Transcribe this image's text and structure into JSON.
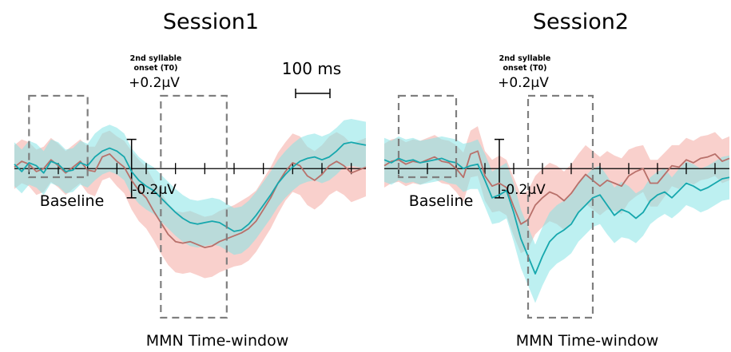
{
  "figure": {
    "colors": {
      "series_a_line": "#b8706a",
      "series_a_band": "#f4a9a3",
      "series_b_line": "#16a7ad",
      "series_b_band": "#86e3e6",
      "box": "#7f7f7f",
      "axis": "#000000"
    },
    "scale_bar_label": "100 ms"
  },
  "chart_data": [
    {
      "type": "line",
      "title": "Session1",
      "onset_label": [
        "2nd syllable",
        "onset (T0)"
      ],
      "y_tick_top": "+0.2μV",
      "y_tick_bottom": "-0.2μV",
      "baseline_label": "Baseline",
      "window_label": "MMN Time-window",
      "x_domain_ms": [
        -400,
        800
      ],
      "y_domain_uv": [
        -0.78,
        0.4
      ],
      "baseline_window_ms": [
        -350,
        -150
      ],
      "mmn_window_ms": [
        100,
        325
      ],
      "series": [
        {
          "x": [
            -400,
            -375,
            -350,
            -325,
            -300,
            -275,
            -250,
            -225,
            -200,
            -175,
            -150,
            -125,
            -100,
            -75,
            -50,
            -25,
            0,
            25,
            50,
            75,
            100,
            125,
            150,
            175,
            200,
            225,
            250,
            275,
            300,
            325,
            350,
            375,
            400,
            425,
            450,
            475,
            500,
            525,
            550,
            575,
            600,
            625,
            650,
            675,
            700,
            725,
            750,
            775,
            800
          ],
          "mean": [
            0.01,
            0.05,
            0.03,
            -0.02,
            0.0,
            0.06,
            0.02,
            -0.03,
            0.01,
            0.05,
            -0.01,
            -0.02,
            0.08,
            0.1,
            0.05,
            0.01,
            -0.08,
            -0.15,
            -0.2,
            -0.29,
            -0.37,
            -0.45,
            -0.5,
            -0.51,
            -0.5,
            -0.52,
            -0.54,
            -0.53,
            -0.5,
            -0.48,
            -0.46,
            -0.44,
            -0.41,
            -0.36,
            -0.28,
            -0.2,
            -0.1,
            -0.02,
            0.04,
            0.02,
            -0.05,
            -0.08,
            -0.04,
            0.02,
            0.05,
            0.02,
            -0.03,
            -0.01,
            0.01
          ],
          "lower": [
            -0.14,
            -0.1,
            -0.12,
            -0.18,
            -0.16,
            -0.09,
            -0.13,
            -0.18,
            -0.14,
            -0.1,
            -0.17,
            -0.19,
            -0.08,
            -0.06,
            -0.12,
            -0.17,
            -0.28,
            -0.36,
            -0.41,
            -0.49,
            -0.58,
            -0.66,
            -0.71,
            -0.72,
            -0.71,
            -0.73,
            -0.75,
            -0.74,
            -0.71,
            -0.69,
            -0.67,
            -0.66,
            -0.63,
            -0.57,
            -0.49,
            -0.41,
            -0.31,
            -0.22,
            -0.16,
            -0.18,
            -0.25,
            -0.28,
            -0.24,
            -0.18,
            -0.15,
            -0.18,
            -0.23,
            -0.21,
            -0.19
          ],
          "upper": [
            0.16,
            0.2,
            0.18,
            0.13,
            0.15,
            0.21,
            0.17,
            0.12,
            0.16,
            0.2,
            0.15,
            0.15,
            0.24,
            0.26,
            0.22,
            0.19,
            0.12,
            0.06,
            0.01,
            -0.08,
            -0.16,
            -0.24,
            -0.29,
            -0.3,
            -0.29,
            -0.31,
            -0.33,
            -0.32,
            -0.29,
            -0.27,
            -0.25,
            -0.22,
            -0.19,
            -0.15,
            -0.07,
            0.01,
            0.11,
            0.18,
            0.24,
            0.22,
            0.15,
            0.12,
            0.16,
            0.22,
            0.25,
            0.22,
            0.17,
            0.19,
            0.21
          ]
        },
        {
          "x": [
            -400,
            -375,
            -350,
            -325,
            -300,
            -275,
            -250,
            -225,
            -200,
            -175,
            -150,
            -125,
            -100,
            -75,
            -50,
            -25,
            0,
            25,
            50,
            75,
            100,
            125,
            150,
            175,
            200,
            225,
            250,
            275,
            300,
            325,
            350,
            375,
            400,
            425,
            450,
            475,
            500,
            525,
            550,
            575,
            600,
            625,
            650,
            675,
            700,
            725,
            750,
            775,
            800
          ],
          "mean": [
            0.03,
            -0.02,
            0.04,
            0.02,
            -0.03,
            0.05,
            0.03,
            -0.02,
            -0.01,
            0.04,
            0.02,
            0.08,
            0.12,
            0.14,
            0.12,
            0.08,
            -0.02,
            -0.08,
            -0.12,
            -0.15,
            -0.2,
            -0.25,
            -0.3,
            -0.34,
            -0.37,
            -0.38,
            -0.37,
            -0.36,
            -0.37,
            -0.4,
            -0.43,
            -0.42,
            -0.38,
            -0.32,
            -0.25,
            -0.18,
            -0.1,
            -0.04,
            0.01,
            0.05,
            0.07,
            0.08,
            0.06,
            0.08,
            0.12,
            0.17,
            0.18,
            0.17,
            0.16
          ],
          "lower": [
            -0.12,
            -0.17,
            -0.11,
            -0.13,
            -0.18,
            -0.1,
            -0.12,
            -0.17,
            -0.16,
            -0.11,
            -0.13,
            -0.08,
            -0.04,
            -0.02,
            -0.04,
            -0.08,
            -0.18,
            -0.24,
            -0.28,
            -0.31,
            -0.36,
            -0.41,
            -0.46,
            -0.5,
            -0.53,
            -0.54,
            -0.53,
            -0.52,
            -0.53,
            -0.56,
            -0.59,
            -0.58,
            -0.54,
            -0.48,
            -0.41,
            -0.34,
            -0.26,
            -0.2,
            -0.15,
            -0.11,
            -0.09,
            -0.08,
            -0.1,
            -0.08,
            -0.04,
            0.01,
            0.02,
            0.01,
            0.0
          ],
          "upper": [
            0.18,
            0.13,
            0.19,
            0.17,
            0.12,
            0.2,
            0.18,
            0.13,
            0.14,
            0.19,
            0.17,
            0.24,
            0.28,
            0.3,
            0.28,
            0.24,
            0.14,
            0.08,
            0.04,
            0.01,
            -0.04,
            -0.09,
            -0.14,
            -0.18,
            -0.21,
            -0.22,
            -0.21,
            -0.2,
            -0.21,
            -0.24,
            -0.27,
            -0.26,
            -0.22,
            -0.16,
            -0.09,
            -0.02,
            0.06,
            0.12,
            0.17,
            0.21,
            0.23,
            0.24,
            0.22,
            0.24,
            0.28,
            0.33,
            0.34,
            0.33,
            0.32
          ]
        }
      ]
    },
    {
      "type": "line",
      "title": "Session2",
      "onset_label": [
        "2nd syllable",
        "onset (T0)"
      ],
      "y_tick_top": "+0.2μV",
      "y_tick_bottom": "-0.2μV",
      "baseline_label": "Baseline",
      "window_label": "MMN Time-window",
      "x_domain_ms": [
        -400,
        800
      ],
      "y_domain_uv": [
        -0.78,
        0.4
      ],
      "baseline_window_ms": [
        -350,
        -150
      ],
      "mmn_window_ms": [
        100,
        325
      ],
      "series": [
        {
          "x": [
            -400,
            -375,
            -350,
            -325,
            -300,
            -275,
            -250,
            -225,
            -200,
            -175,
            -150,
            -125,
            -100,
            -75,
            -50,
            -25,
            0,
            25,
            50,
            75,
            100,
            125,
            150,
            175,
            200,
            225,
            250,
            275,
            300,
            325,
            350,
            375,
            400,
            425,
            450,
            475,
            500,
            525,
            550,
            575,
            600,
            625,
            650,
            675,
            700,
            725,
            750,
            775,
            800
          ],
          "mean": [
            0.02,
            0.05,
            0.06,
            0.03,
            0.05,
            0.04,
            0.06,
            0.08,
            0.05,
            0.04,
            0.0,
            -0.06,
            0.1,
            0.12,
            -0.05,
            -0.12,
            -0.1,
            -0.13,
            -0.26,
            -0.38,
            -0.35,
            -0.25,
            -0.2,
            -0.16,
            -0.18,
            -0.22,
            -0.17,
            -0.1,
            -0.04,
            -0.08,
            -0.12,
            -0.08,
            -0.1,
            -0.12,
            -0.05,
            -0.02,
            0.0,
            -0.1,
            -0.1,
            -0.04,
            0.02,
            0.01,
            0.06,
            0.04,
            0.07,
            0.08,
            0.1,
            0.05,
            0.07
          ],
          "lower": [
            -0.13,
            -0.1,
            -0.09,
            -0.12,
            -0.1,
            -0.11,
            -0.09,
            -0.07,
            -0.1,
            -0.11,
            -0.16,
            -0.23,
            -0.06,
            -0.05,
            -0.22,
            -0.3,
            -0.29,
            -0.32,
            -0.46,
            -0.58,
            -0.55,
            -0.45,
            -0.4,
            -0.36,
            -0.38,
            -0.42,
            -0.37,
            -0.3,
            -0.24,
            -0.28,
            -0.32,
            -0.28,
            -0.29,
            -0.31,
            -0.23,
            -0.19,
            -0.16,
            -0.26,
            -0.26,
            -0.19,
            -0.12,
            -0.14,
            -0.09,
            -0.11,
            -0.08,
            -0.07,
            -0.05,
            -0.1,
            -0.08
          ],
          "upper": [
            0.17,
            0.2,
            0.21,
            0.18,
            0.2,
            0.19,
            0.21,
            0.23,
            0.2,
            0.19,
            0.16,
            0.11,
            0.26,
            0.29,
            0.12,
            0.06,
            0.09,
            0.06,
            -0.06,
            -0.18,
            -0.15,
            -0.05,
            0.0,
            0.04,
            0.02,
            -0.02,
            0.03,
            0.1,
            0.16,
            0.12,
            0.08,
            0.12,
            0.09,
            0.07,
            0.13,
            0.15,
            0.16,
            0.06,
            0.06,
            0.11,
            0.16,
            0.16,
            0.21,
            0.19,
            0.22,
            0.23,
            0.25,
            0.2,
            0.22
          ]
        },
        {
          "x": [
            -400,
            -375,
            -350,
            -325,
            -300,
            -275,
            -250,
            -225,
            -200,
            -175,
            -150,
            -125,
            -100,
            -75,
            -50,
            -25,
            0,
            25,
            50,
            75,
            100,
            125,
            150,
            175,
            200,
            225,
            250,
            275,
            300,
            325,
            350,
            375,
            400,
            425,
            450,
            475,
            500,
            525,
            550,
            575,
            600,
            625,
            650,
            675,
            700,
            725,
            750,
            775,
            800
          ],
          "mean": [
            0.06,
            0.04,
            0.07,
            0.05,
            0.06,
            0.04,
            0.05,
            0.06,
            0.07,
            0.05,
            0.04,
            0.0,
            0.02,
            0.03,
            -0.08,
            -0.2,
            -0.18,
            -0.15,
            -0.3,
            -0.48,
            -0.6,
            -0.72,
            -0.6,
            -0.5,
            -0.45,
            -0.42,
            -0.38,
            -0.3,
            -0.25,
            -0.2,
            -0.18,
            -0.25,
            -0.32,
            -0.28,
            -0.3,
            -0.34,
            -0.3,
            -0.22,
            -0.18,
            -0.16,
            -0.2,
            -0.15,
            -0.1,
            -0.12,
            -0.15,
            -0.13,
            -0.1,
            -0.07,
            -0.06
          ],
          "lower": [
            -0.09,
            -0.11,
            -0.08,
            -0.1,
            -0.09,
            -0.11,
            -0.1,
            -0.09,
            -0.08,
            -0.1,
            -0.11,
            -0.16,
            -0.14,
            -0.14,
            -0.26,
            -0.38,
            -0.37,
            -0.34,
            -0.5,
            -0.68,
            -0.8,
            -0.92,
            -0.8,
            -0.7,
            -0.65,
            -0.62,
            -0.58,
            -0.5,
            -0.45,
            -0.4,
            -0.38,
            -0.45,
            -0.51,
            -0.47,
            -0.48,
            -0.51,
            -0.46,
            -0.38,
            -0.34,
            -0.31,
            -0.34,
            -0.3,
            -0.25,
            -0.27,
            -0.3,
            -0.28,
            -0.25,
            -0.22,
            -0.21
          ],
          "upper": [
            0.21,
            0.19,
            0.22,
            0.2,
            0.21,
            0.19,
            0.2,
            0.21,
            0.22,
            0.21,
            0.2,
            0.17,
            0.18,
            0.2,
            0.1,
            -0.02,
            0.01,
            0.04,
            -0.1,
            -0.28,
            -0.4,
            -0.52,
            -0.4,
            -0.3,
            -0.25,
            -0.22,
            -0.18,
            -0.1,
            -0.05,
            0.0,
            0.02,
            -0.05,
            -0.13,
            -0.09,
            -0.12,
            -0.17,
            -0.14,
            -0.06,
            -0.02,
            0.0,
            -0.06,
            0.0,
            0.05,
            0.03,
            0.0,
            0.02,
            0.05,
            0.08,
            0.09
          ]
        }
      ]
    }
  ]
}
